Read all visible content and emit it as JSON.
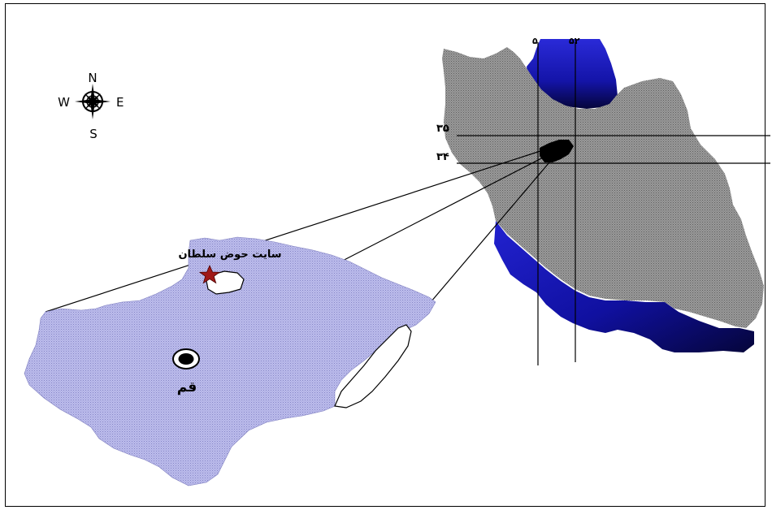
{
  "compass": {
    "north": "N",
    "south": "S",
    "east": "E",
    "west": "W"
  },
  "latitudes": {
    "upper": "۳۵",
    "lower": "۳۴"
  },
  "longitudes": {
    "left": "۵",
    "right": "۵۲"
  },
  "site": {
    "label": "سایت حوض سلطان"
  },
  "city": {
    "label": "قم"
  },
  "colors": {
    "country": "#8a8a8a",
    "sea": "#1d1db8",
    "province": "#b4b4e6",
    "star": "#a01818"
  }
}
